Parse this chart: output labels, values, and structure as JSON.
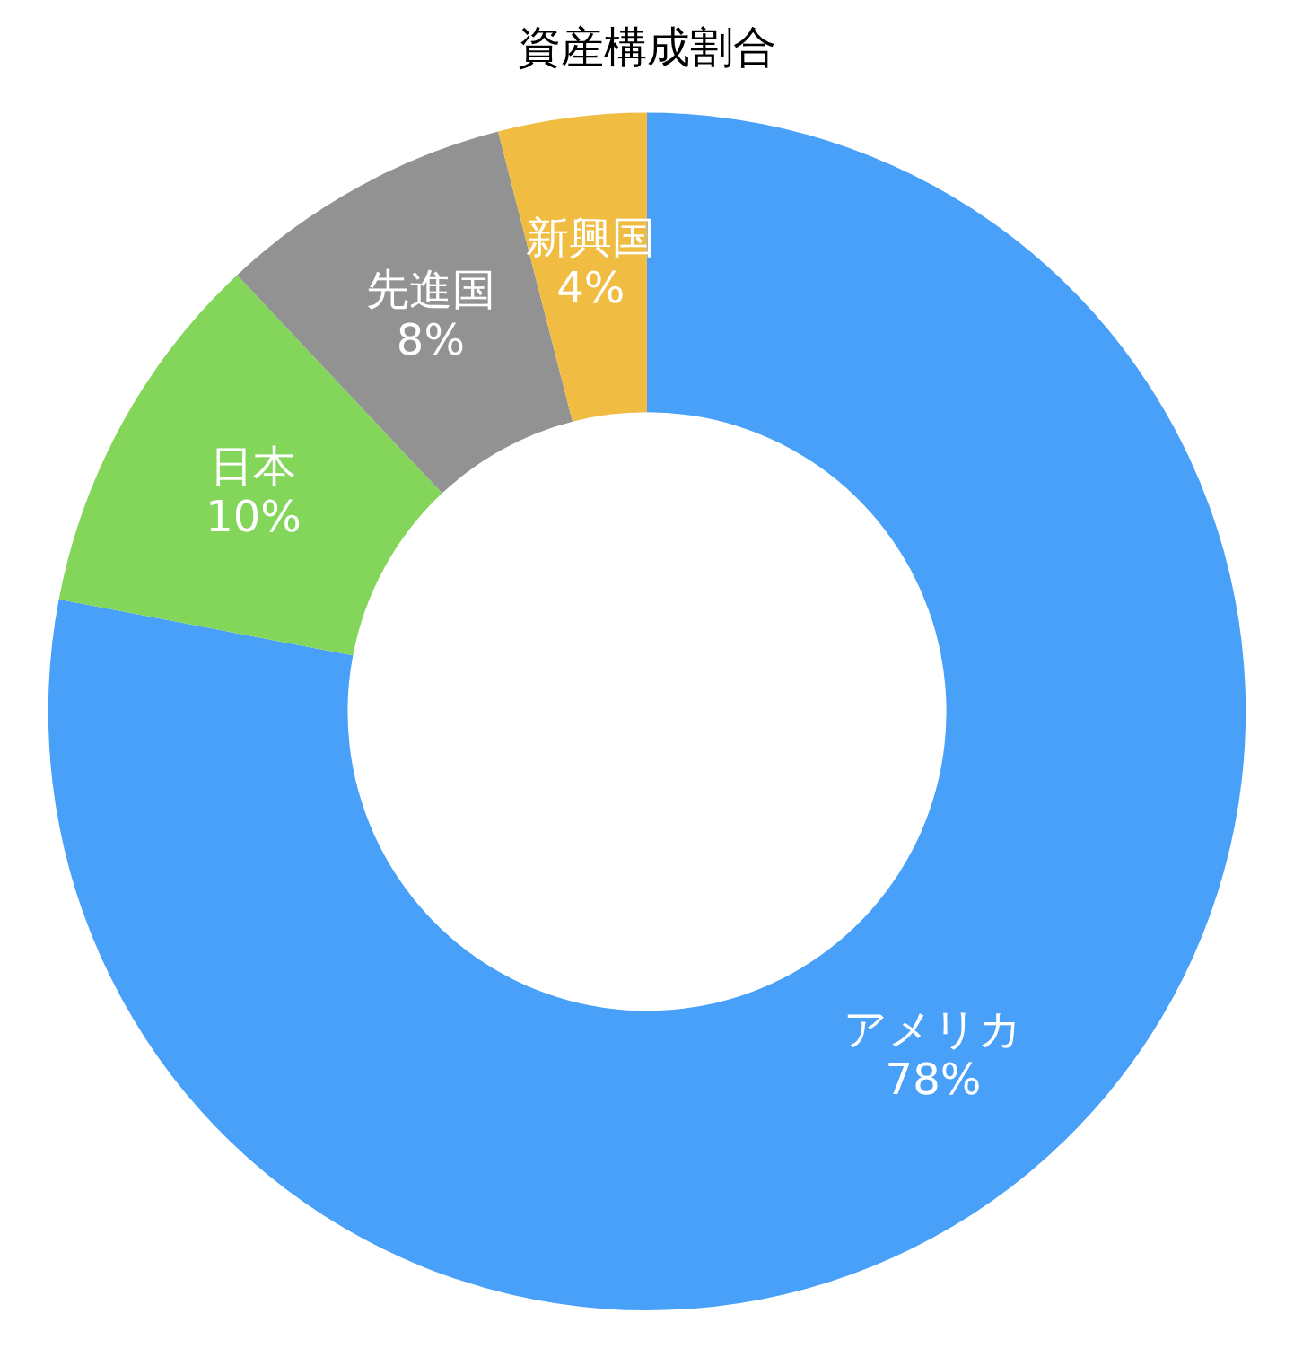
{
  "chart_data": {
    "type": "donut",
    "title": "資産構成割合",
    "categories": [
      "アメリカ",
      "日本",
      "先進国",
      "新興国"
    ],
    "values": [
      78,
      10,
      8,
      4
    ],
    "value_labels": [
      "78%",
      "10%",
      "8%",
      "4%"
    ],
    "colors": [
      "#48a0f8",
      "#83d65a",
      "#929292",
      "#f0bd42"
    ],
    "legend": false
  }
}
